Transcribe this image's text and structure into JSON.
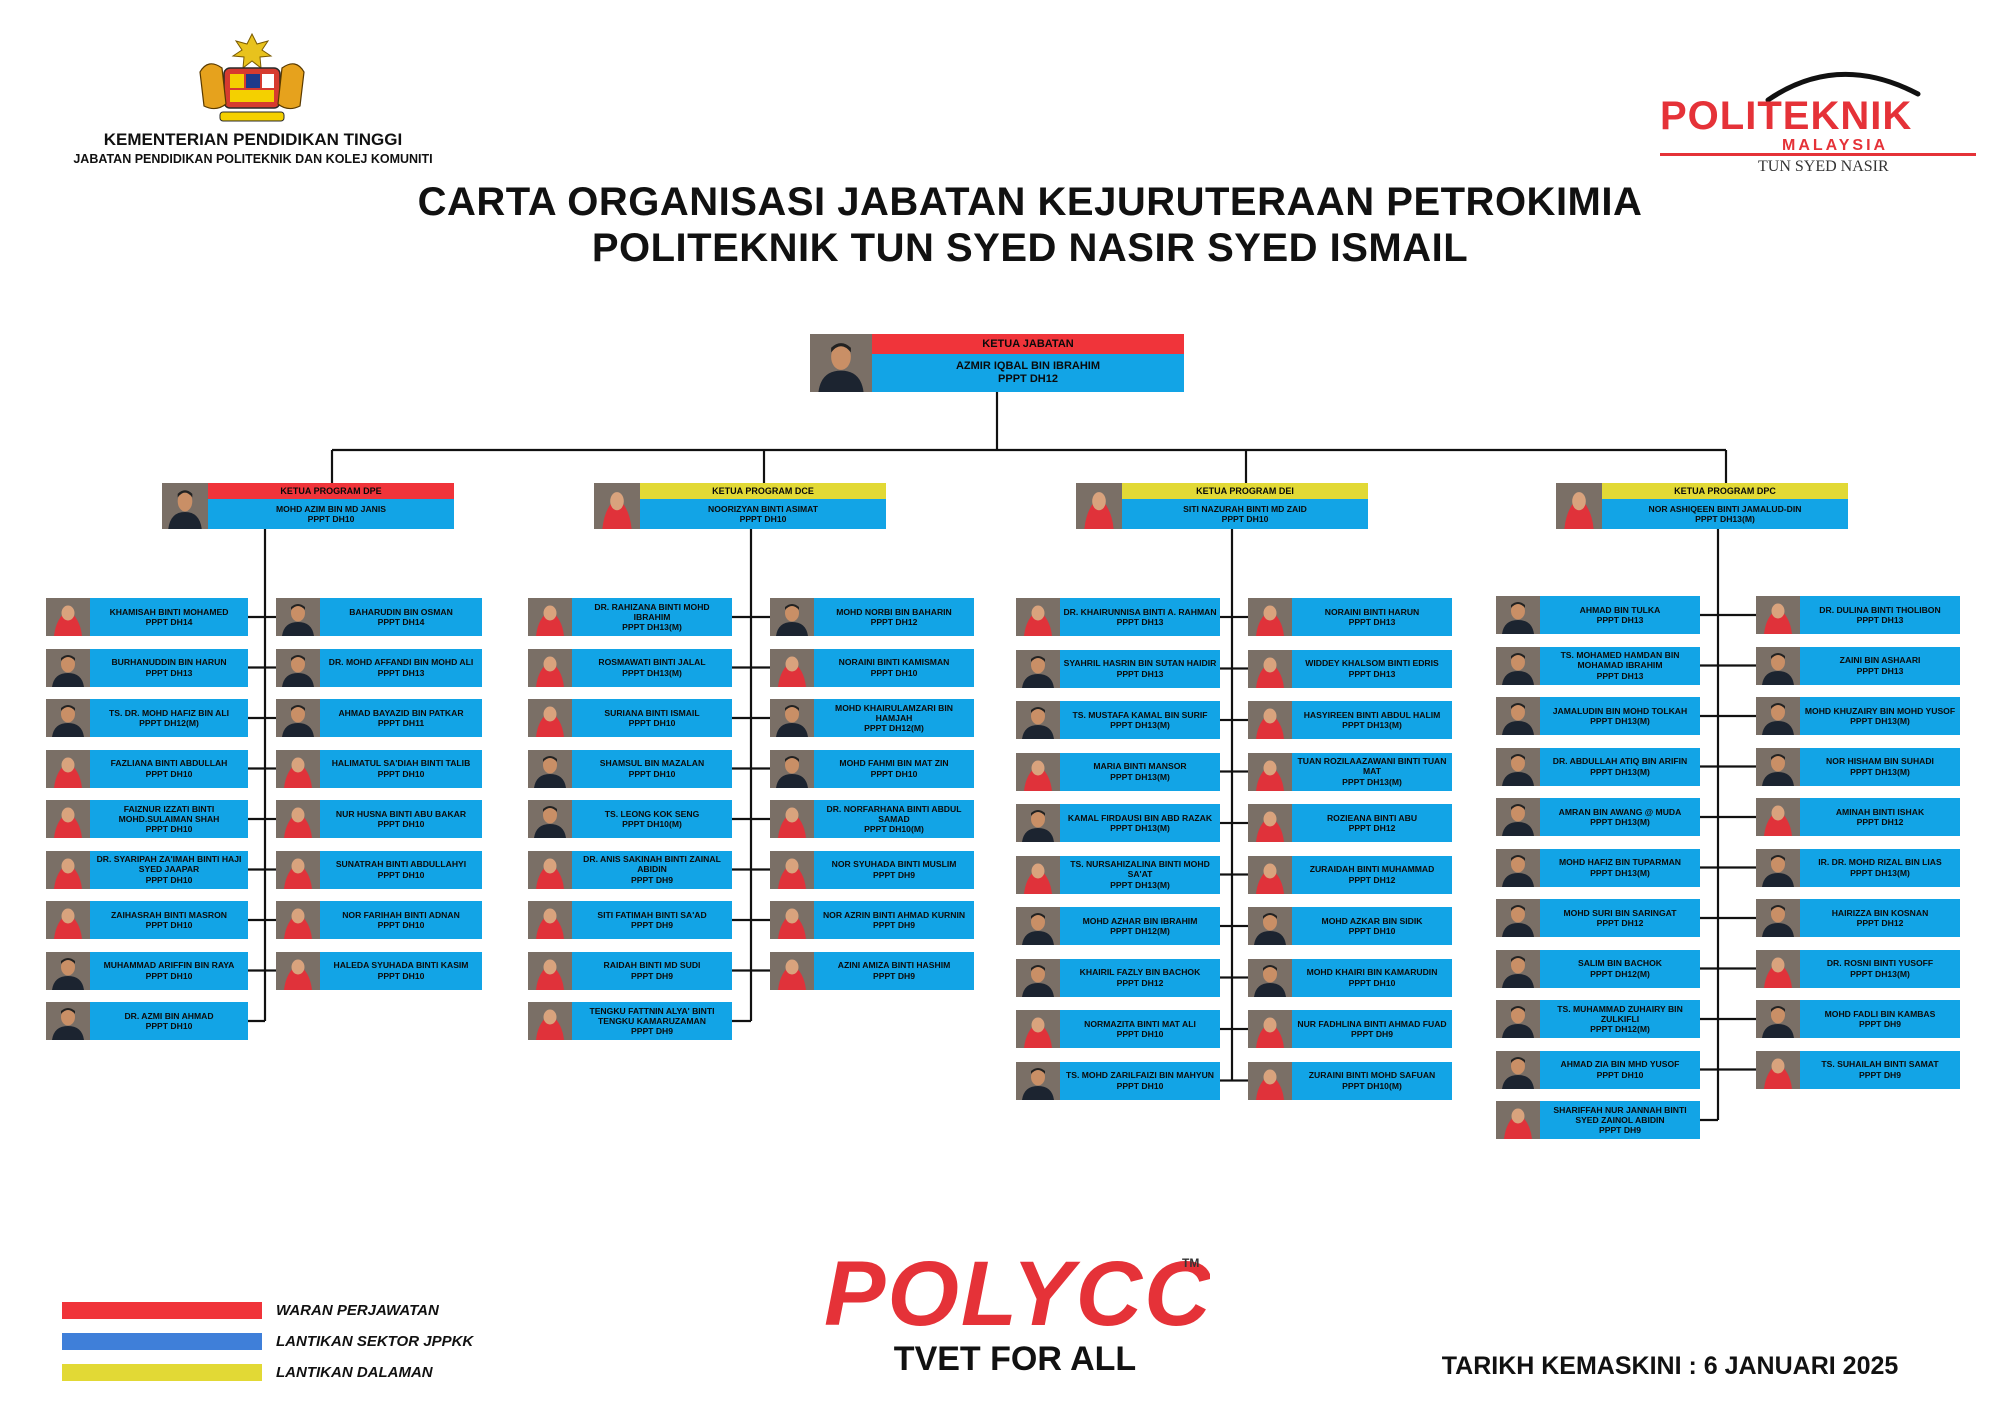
{
  "header": {
    "ministry_line1": "KEMENTERIAN PENDIDIKAN TINGGI",
    "ministry_line2": "JABATAN PENDIDIKAN POLITEKNIK DAN KOLEJ KOMUNITI",
    "title_line1": "CARTA ORGANISASI JABATAN KEJURUTERAAN PETROKIMIA",
    "title_line2": "POLITEKNIK TUN SYED NASIR SYED ISMAIL",
    "logo_politeknik": "POLITEKNIK",
    "logo_malaysia": "MALAYSIA",
    "logo_campus": "TUN SYED NASIR"
  },
  "colors": {
    "red": "#f0343a",
    "blue": "#12a4e6",
    "yellow": "#e2d935",
    "line": "#111111"
  },
  "head": {
    "role": "KETUA JABATAN",
    "name": "AZMIR IQBAL BIN IBRAHIM",
    "grade": "PPPT DH12"
  },
  "programs": [
    {
      "role": "KETUA PROGRAM DPE",
      "name": "MOHD AZIM BIN MD JANIS",
      "grade": "PPPT DH10",
      "role_color": "red",
      "left": [
        {
          "name": "KHAMISAH BINTI MOHAMED",
          "grade": "PPPT DH14"
        },
        {
          "name": "BURHANUDDIN BIN HARUN",
          "grade": "PPPT DH13"
        },
        {
          "name": "TS. DR. MOHD HAFIZ BIN ALI",
          "grade": "PPPT DH12(M)"
        },
        {
          "name": "FAZLIANA BINTI ABDULLAH",
          "grade": "PPPT DH10"
        },
        {
          "name": "FAIZNUR IZZATI BINTI MOHD.SULAIMAN SHAH",
          "grade": "PPPT DH10"
        },
        {
          "name": "DR. SYARIPAH ZA'IMAH BINTI HAJI SYED JAAPAR",
          "grade": "PPPT DH10"
        },
        {
          "name": "ZAIHASRAH BINTI MASRON",
          "grade": "PPPT DH10"
        },
        {
          "name": "MUHAMMAD ARIFFIN BIN RAYA",
          "grade": "PPPT DH10"
        },
        {
          "name": "DR. AZMI BIN AHMAD",
          "grade": "PPPT DH10"
        }
      ],
      "right": [
        {
          "name": "BAHARUDIN BIN OSMAN",
          "grade": "PPPT DH14"
        },
        {
          "name": "DR. MOHD AFFANDI BIN MOHD ALI",
          "grade": "PPPT DH13"
        },
        {
          "name": "AHMAD BAYAZID BIN PATKAR",
          "grade": "PPPT DH11"
        },
        {
          "name": "HALIMATUL SA'DIAH BINTI TALIB",
          "grade": "PPPT DH10"
        },
        {
          "name": "NUR HUSNA BINTI ABU BAKAR",
          "grade": "PPPT DH10"
        },
        {
          "name": "SUNATRAH BINTI ABDULLAHYI",
          "grade": "PPPT DH10"
        },
        {
          "name": "NOR FARIHAH BINTI ADNAN",
          "grade": "PPPT DH10"
        },
        {
          "name": "HALEDA SYUHADA BINTI KASIM",
          "grade": "PPPT DH10"
        }
      ]
    },
    {
      "role": "KETUA PROGRAM DCE",
      "name": "NOORIZYAN BINTI ASIMAT",
      "grade": "PPPT DH10",
      "role_color": "yellow",
      "left": [
        {
          "name": "DR. RAHIZANA BINTI MOHD IBRAHIM",
          "grade": "PPPT DH13(M)"
        },
        {
          "name": "ROSMAWATI BINTI JALAL",
          "grade": "PPPT DH13(M)"
        },
        {
          "name": "SURIANA BINTI ISMAIL",
          "grade": "PPPT DH10"
        },
        {
          "name": "SHAMSUL BIN MAZALAN",
          "grade": "PPPT DH10"
        },
        {
          "name": "TS. LEONG KOK SENG",
          "grade": "PPPT DH10(M)"
        },
        {
          "name": "DR. ANIS SAKINAH BINTI ZAINAL ABIDIN",
          "grade": "PPPT DH9"
        },
        {
          "name": "SITI FATIMAH BINTI SA'AD",
          "grade": "PPPT DH9"
        },
        {
          "name": "RAIDAH BINTI MD SUDI",
          "grade": "PPPT DH9"
        },
        {
          "name": "TENGKU FATTNIN ALYA' BINTI TENGKU KAMARUZAMAN",
          "grade": "PPPT DH9"
        }
      ],
      "right": [
        {
          "name": "MOHD NORBI BIN BAHARIN",
          "grade": "PPPT DH12"
        },
        {
          "name": "NORAINI BINTI KAMISMAN",
          "grade": "PPPT DH10"
        },
        {
          "name": "MOHD KHAIRULAMZARI BIN HAMJAH",
          "grade": "PPPT DH12(M)"
        },
        {
          "name": "MOHD FAHMI BIN MAT ZIN",
          "grade": "PPPT DH10"
        },
        {
          "name": "DR. NORFARHANA BINTI ABDUL SAMAD",
          "grade": "PPPT DH10(M)"
        },
        {
          "name": "NOR SYUHADA BINTI MUSLIM",
          "grade": "PPPT DH9"
        },
        {
          "name": "NOR AZRIN BINTI AHMAD KURNIN",
          "grade": "PPPT DH9"
        },
        {
          "name": "AZINI AMIZA BINTI HASHIM",
          "grade": "PPPT DH9"
        }
      ]
    },
    {
      "role": "KETUA PROGRAM DEI",
      "name": "SITI NAZURAH BINTI MD ZAID",
      "grade": "PPPT DH10",
      "role_color": "yellow",
      "left": [
        {
          "name": "DR. KHAIRUNNISA BINTI A. RAHMAN",
          "grade": "PPPT DH13"
        },
        {
          "name": "SYAHRIL HASRIN BIN SUTAN HAIDIR",
          "grade": "PPPT DH13"
        },
        {
          "name": "TS. MUSTAFA KAMAL BIN SURIF",
          "grade": "PPPT DH13(M)"
        },
        {
          "name": "MARIA BINTI MANSOR",
          "grade": "PPPT DH13(M)"
        },
        {
          "name": "KAMAL FIRDAUSI BIN ABD RAZAK",
          "grade": "PPPT DH13(M)"
        },
        {
          "name": "TS. NURSAHIZALINA BINTI MOHD SA'AT",
          "grade": "PPPT DH13(M)"
        },
        {
          "name": "MOHD AZHAR BIN IBRAHIM",
          "grade": "PPPT DH12(M)"
        },
        {
          "name": "KHAIRIL FAZLY BIN BACHOK",
          "grade": "PPPT DH12"
        },
        {
          "name": "NORMAZITA BINTI MAT ALI",
          "grade": "PPPT DH10"
        },
        {
          "name": "TS. MOHD ZARILFAIZI BIN MAHYUN",
          "grade": "PPPT DH10"
        }
      ],
      "right": [
        {
          "name": "NORAINI BINTI HARUN",
          "grade": "PPPT DH13"
        },
        {
          "name": "WIDDEY KHALSOM BINTI EDRIS",
          "grade": "PPPT DH13"
        },
        {
          "name": "HASYIREEN BINTI ABDUL HALIM",
          "grade": "PPPT DH13(M)"
        },
        {
          "name": "TUAN ROZILAAZAWANI BINTI TUAN MAT",
          "grade": "PPPT DH13(M)"
        },
        {
          "name": "ROZIEANA BINTI ABU",
          "grade": "PPPT DH12"
        },
        {
          "name": "ZURAIDAH BINTI MUHAMMAD",
          "grade": "PPPT DH12"
        },
        {
          "name": "MOHD AZKAR BIN SIDIK",
          "grade": "PPPT DH10"
        },
        {
          "name": "MOHD KHAIRI BIN KAMARUDIN",
          "grade": "PPPT DH10"
        },
        {
          "name": "NUR FADHLINA BINTI AHMAD FUAD",
          "grade": "PPPT DH9"
        },
        {
          "name": "ZURAINI BINTI MOHD SAFUAN",
          "grade": "PPPT DH10(M)"
        }
      ]
    },
    {
      "role": "KETUA PROGRAM DPC",
      "name": "NOR ASHIQEEN BINTI JAMALUD-DIN",
      "grade": "PPPT DH13(M)",
      "role_color": "yellow",
      "left": [
        {
          "name": "AHMAD BIN TULKA",
          "grade": "PPPT DH13"
        },
        {
          "name": "TS. MOHAMED HAMDAN BIN MOHAMAD IBRAHIM",
          "grade": "PPPT DH13"
        },
        {
          "name": "JAMALUDIN BIN MOHD TOLKAH",
          "grade": "PPPT DH13(M)"
        },
        {
          "name": "DR. ABDULLAH ATIQ BIN ARIFIN",
          "grade": "PPPT DH13(M)"
        },
        {
          "name": "AMRAN BIN AWANG @ MUDA",
          "grade": "PPPT DH13(M)"
        },
        {
          "name": "MOHD HAFIZ BIN TUPARMAN",
          "grade": "PPPT DH13(M)"
        },
        {
          "name": "MOHD SURI BIN SARINGAT",
          "grade": "PPPT DH12"
        },
        {
          "name": "SALIM BIN BACHOK",
          "grade": "PPPT DH12(M)"
        },
        {
          "name": "TS. MUHAMMAD ZUHAIRY BIN ZULKIFLI",
          "grade": "PPPT DH12(M)"
        },
        {
          "name": "AHMAD ZIA BIN MHD YUSOF",
          "grade": "PPPT DH10"
        },
        {
          "name": "SHARIFFAH NUR JANNAH BINTI SYED ZAINOL ABIDIN",
          "grade": "PPPT DH9"
        }
      ],
      "right": [
        {
          "name": "DR. DULINA BINTI THOLIBON",
          "grade": "PPPT DH13"
        },
        {
          "name": "ZAINI BIN ASHAARI",
          "grade": "PPPT DH13"
        },
        {
          "name": "MOHD KHUZAIRY BIN MOHD YUSOF",
          "grade": "PPPT DH13(M)"
        },
        {
          "name": "NOR HISHAM BIN SUHADI",
          "grade": "PPPT DH13(M)"
        },
        {
          "name": "AMINAH BINTI ISHAK",
          "grade": "PPPT DH12"
        },
        {
          "name": "IR. DR. MOHD RIZAL BIN LIAS",
          "grade": "PPPT DH13(M)"
        },
        {
          "name": "HAIRIZZA BIN KOSNAN",
          "grade": "PPPT DH12"
        },
        {
          "name": "DR. ROSNI BINTI YUSOFF",
          "grade": "PPPT DH13(M)"
        },
        {
          "name": "MOHD FADLI BIN KAMBAS",
          "grade": "PPPT DH9"
        },
        {
          "name": "TS. SUHAILAH BINTI SAMAT",
          "grade": "PPPT DH9"
        }
      ]
    }
  ],
  "legend": [
    {
      "label": "WARAN PERJAWATAN",
      "color": "#f0343a"
    },
    {
      "label": "LANTIKAN SEKTOR JPPKK",
      "color": "#3f7fd9"
    },
    {
      "label": "LANTIKAN DALAMAN",
      "color": "#e2d935"
    }
  ],
  "footer": {
    "brand": "POLYCC",
    "tm": "TM",
    "tagline": "TVET FOR ALL",
    "updated": "TARIKH KEMASKINI : 6 JANUARI 2025"
  }
}
